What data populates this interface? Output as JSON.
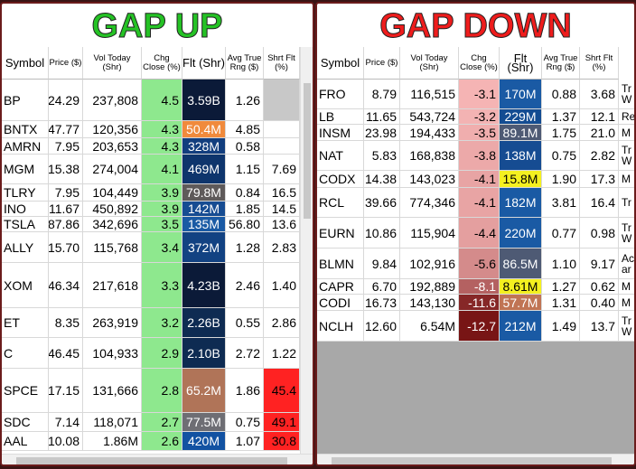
{
  "panels": [
    {
      "title": "GAP UP",
      "headers": [
        "Symbol",
        "Price ($)",
        "Vol Today (Shr)",
        "Chg Close (%)",
        "Flt (Shr)",
        "Avg True Rng ($)",
        "Shrt Flt (%)"
      ],
      "rows": [
        [
          "BP",
          "24.29",
          "237,808",
          "4.5",
          "3.59B",
          "1.26",
          null
        ],
        [
          "BNTX",
          "47.77",
          "120,356",
          "4.3",
          "50.4M",
          "4.85",
          null
        ],
        [
          "AMRN",
          "7.95",
          "203,653",
          "4.3",
          "328M",
          "0.58",
          null
        ],
        [
          "MGM",
          "15.38",
          "274,004",
          "4.1",
          "469M",
          "1.15",
          "7.69"
        ],
        [
          "TLRY",
          "7.95",
          "104,449",
          "3.9",
          "79.8M",
          "0.84",
          "16.5"
        ],
        [
          "INO",
          "11.67",
          "450,892",
          "3.9",
          "142M",
          "1.85",
          "14.5"
        ],
        [
          "TSLA",
          "787.86",
          "342,696",
          "3.5",
          "135M",
          "56.80",
          "13.6"
        ],
        [
          "ALLY",
          "15.70",
          "115,768",
          "3.4",
          "372M",
          "1.28",
          "2.83"
        ],
        [
          "XOM",
          "46.34",
          "217,618",
          "3.3",
          "4.23B",
          "2.46",
          "1.40"
        ],
        [
          "ET",
          "8.35",
          "263,919",
          "3.2",
          "2.26B",
          "0.55",
          "2.86"
        ],
        [
          "C",
          "46.45",
          "104,933",
          "2.9",
          "2.10B",
          "2.72",
          "1.22"
        ],
        [
          "SPCE",
          "17.15",
          "131,666",
          "2.8",
          "65.2M",
          "1.86",
          "45.4"
        ],
        [
          "SDC",
          "7.14",
          "118,071",
          "2.7",
          "77.5M",
          "0.75",
          "49.1"
        ],
        [
          "AAL",
          "10.08",
          "1.86M",
          "2.6",
          "420M",
          "1.07",
          "30.8"
        ]
      ]
    },
    {
      "title": "GAP DOWN",
      "headers": [
        "Symbol",
        "Price ($)",
        "Vol Today (Shr)",
        "Chg Close (%)",
        "Flt (Shr)",
        "Avg True Rng ($)",
        "Shrt Flt (%)"
      ],
      "rows": [
        [
          "FRO",
          "8.79",
          "116,515",
          "-3.1",
          "170M",
          "0.88",
          "3.68",
          "Tr W"
        ],
        [
          "LB",
          "11.65",
          "543,724",
          "-3.2",
          "229M",
          "1.37",
          "12.1",
          "Re"
        ],
        [
          "INSM",
          "23.98",
          "194,433",
          "-3.5",
          "89.1M",
          "1.75",
          "21.0",
          "M"
        ],
        [
          "NAT",
          "5.83",
          "168,838",
          "-3.8",
          "138M",
          "0.75",
          "2.82",
          "Tr W"
        ],
        [
          "CODX",
          "14.38",
          "143,023",
          "-4.1",
          "15.8M",
          "1.90",
          "17.3",
          "M"
        ],
        [
          "RCL",
          "39.66",
          "774,346",
          "-4.1",
          "182M",
          "3.81",
          "16.4",
          "Tr"
        ],
        [
          "EURN",
          "10.86",
          "115,904",
          "-4.4",
          "220M",
          "0.77",
          "0.98",
          "Tr W"
        ],
        [
          "BLMN",
          "9.84",
          "102,916",
          "-5.6",
          "86.5M",
          "1.10",
          "9.17",
          "Ac ar"
        ],
        [
          "CAPR",
          "6.70",
          "192,889",
          "-8.1",
          "8.61M",
          "1.27",
          "0.62",
          "M"
        ],
        [
          "CODI",
          "16.73",
          "143,130",
          "-11.6",
          "57.7M",
          "1.31",
          "0.40",
          "M"
        ],
        [
          "NCLH",
          "12.60",
          "6.54M",
          "-12.7",
          "212M",
          "1.49",
          "13.7",
          "Tr W"
        ]
      ]
    }
  ]
}
